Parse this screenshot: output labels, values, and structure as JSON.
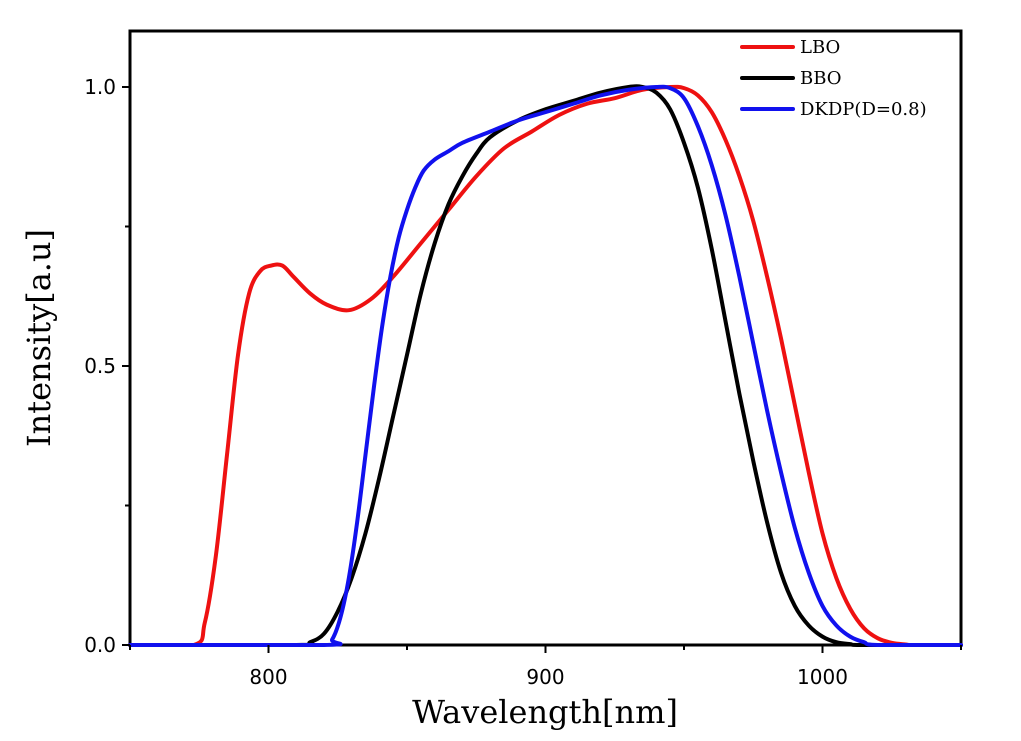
{
  "chart_data": {
    "type": "line",
    "title": "",
    "xlabel": "Wavelength[nm]",
    "ylabel": "Intensity[a.u]",
    "xlim": [
      750,
      1050
    ],
    "ylim": [
      0.0,
      1.1
    ],
    "x_ticks": [
      800,
      900,
      1000
    ],
    "x_tick_labels": [
      "800",
      "900",
      "1000"
    ],
    "y_ticks": [
      0.0,
      0.5,
      1.0
    ],
    "y_tick_labels": [
      "0.0",
      "0.5",
      "1.0"
    ],
    "grid": false,
    "legend_position": "top-right",
    "series": [
      {
        "name": "LBO",
        "color": "#ee1111",
        "x": [
          750,
          773,
          777,
          781,
          785,
          789,
          793,
          797,
          801,
          805,
          809,
          815,
          821,
          829,
          837,
          845,
          855,
          865,
          875,
          885,
          895,
          905,
          915,
          925,
          935,
          945,
          950,
          955,
          960,
          965,
          970,
          975,
          980,
          985,
          990,
          995,
          1000,
          1005,
          1010,
          1015,
          1020,
          1025,
          1030,
          1033,
          1050
        ],
        "y": [
          0.0,
          0.0,
          0.04,
          0.16,
          0.34,
          0.52,
          0.63,
          0.67,
          0.68,
          0.68,
          0.66,
          0.63,
          0.61,
          0.6,
          0.62,
          0.66,
          0.72,
          0.78,
          0.84,
          0.89,
          0.92,
          0.95,
          0.97,
          0.98,
          0.995,
          1.0,
          0.998,
          0.985,
          0.955,
          0.905,
          0.84,
          0.76,
          0.66,
          0.55,
          0.43,
          0.31,
          0.2,
          0.12,
          0.065,
          0.03,
          0.012,
          0.004,
          0.001,
          0.0,
          0.0
        ]
      },
      {
        "name": "BBO",
        "color": "#000000",
        "x": [
          750,
          810,
          815,
          820,
          825,
          830,
          835,
          840,
          845,
          850,
          855,
          860,
          865,
          870,
          875,
          880,
          890,
          900,
          910,
          920,
          930,
          935,
          940,
          945,
          950,
          955,
          960,
          965,
          970,
          975,
          980,
          985,
          990,
          995,
          1000,
          1005,
          1010,
          1015,
          1050
        ],
        "y": [
          0.0,
          0.0,
          0.005,
          0.02,
          0.06,
          0.12,
          0.2,
          0.3,
          0.41,
          0.52,
          0.63,
          0.72,
          0.79,
          0.84,
          0.88,
          0.91,
          0.94,
          0.96,
          0.975,
          0.99,
          1.0,
          1.0,
          0.99,
          0.96,
          0.9,
          0.82,
          0.71,
          0.58,
          0.45,
          0.33,
          0.22,
          0.13,
          0.07,
          0.035,
          0.015,
          0.005,
          0.0015,
          0.0,
          0.0
        ]
      },
      {
        "name": "DKDP(D=0.8)",
        "color": "#1111ee",
        "x": [
          750,
          820,
          823,
          826,
          829,
          832,
          835,
          838,
          841,
          844,
          847,
          850,
          853,
          856,
          860,
          865,
          870,
          880,
          890,
          900,
          910,
          920,
          930,
          940,
          945,
          950,
          955,
          960,
          965,
          970,
          975,
          980,
          985,
          990,
          995,
          1000,
          1005,
          1010,
          1015,
          1020,
          1050
        ],
        "y": [
          0.0,
          0.0,
          0.01,
          0.05,
          0.12,
          0.22,
          0.34,
          0.46,
          0.57,
          0.66,
          0.73,
          0.78,
          0.82,
          0.85,
          0.87,
          0.885,
          0.9,
          0.92,
          0.94,
          0.955,
          0.97,
          0.985,
          0.995,
          1.0,
          0.998,
          0.98,
          0.93,
          0.86,
          0.77,
          0.66,
          0.54,
          0.42,
          0.31,
          0.21,
          0.13,
          0.07,
          0.035,
          0.015,
          0.005,
          0.0,
          0.0
        ]
      }
    ]
  }
}
